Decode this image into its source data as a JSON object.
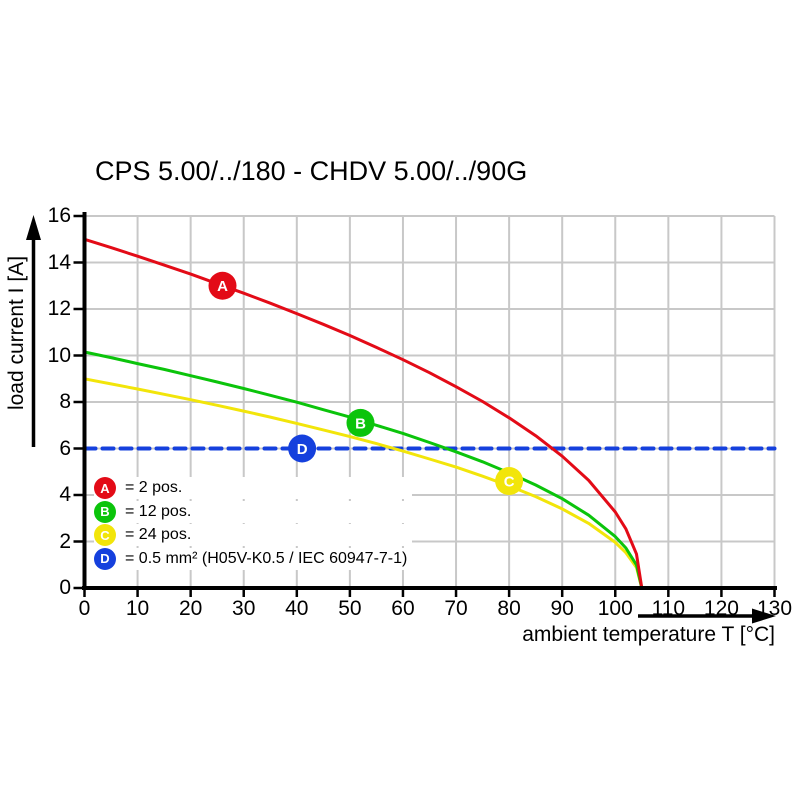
{
  "chart_data": {
    "type": "line",
    "title": "CPS 5.00/../180 - CHDV 5.00/../90G",
    "xlabel": "ambient temperature T [°C]",
    "ylabel": "load current I [A]",
    "xlim": [
      0,
      130
    ],
    "ylim": [
      0,
      16
    ],
    "x_ticks": [
      0,
      10,
      20,
      30,
      40,
      50,
      60,
      70,
      80,
      90,
      100,
      110,
      120,
      130
    ],
    "y_ticks": [
      0,
      2,
      4,
      6,
      8,
      10,
      12,
      14,
      16
    ],
    "grid": true,
    "grid_color": "#c8c8c8",
    "legend_position": "lower-left",
    "series": [
      {
        "key": "A",
        "name": "2 pos.",
        "color": "#e30b17",
        "line_style": "solid",
        "marker": {
          "label": "A",
          "x": 26,
          "y": 13
        },
        "points": [
          [
            0,
            15.0
          ],
          [
            5,
            14.64
          ],
          [
            10,
            14.27
          ],
          [
            15,
            13.89
          ],
          [
            20,
            13.5
          ],
          [
            25,
            13.09
          ],
          [
            30,
            12.68
          ],
          [
            35,
            12.25
          ],
          [
            40,
            11.8
          ],
          [
            45,
            11.34
          ],
          [
            50,
            10.86
          ],
          [
            55,
            10.35
          ],
          [
            60,
            9.82
          ],
          [
            65,
            9.26
          ],
          [
            70,
            8.66
          ],
          [
            75,
            8.02
          ],
          [
            80,
            7.32
          ],
          [
            85,
            6.55
          ],
          [
            90,
            5.67
          ],
          [
            95,
            4.63
          ],
          [
            100,
            3.27
          ],
          [
            102,
            2.54
          ],
          [
            104,
            1.46
          ],
          [
            105,
            0
          ]
        ]
      },
      {
        "key": "B",
        "name": "12 pos.",
        "color": "#0bc40b",
        "line_style": "solid",
        "marker": {
          "label": "B",
          "x": 52,
          "y": 7.1
        },
        "points": [
          [
            0,
            10.15
          ],
          [
            5,
            9.91
          ],
          [
            10,
            9.65
          ],
          [
            15,
            9.4
          ],
          [
            20,
            9.13
          ],
          [
            25,
            8.86
          ],
          [
            30,
            8.58
          ],
          [
            35,
            8.29
          ],
          [
            40,
            7.99
          ],
          [
            45,
            7.67
          ],
          [
            50,
            7.35
          ],
          [
            55,
            7.0
          ],
          [
            60,
            6.65
          ],
          [
            65,
            6.26
          ],
          [
            70,
            5.86
          ],
          [
            75,
            5.43
          ],
          [
            80,
            4.95
          ],
          [
            85,
            4.43
          ],
          [
            90,
            3.84
          ],
          [
            95,
            3.13
          ],
          [
            100,
            2.21
          ],
          [
            102,
            1.72
          ],
          [
            104,
            0.99
          ],
          [
            105,
            0
          ]
        ]
      },
      {
        "key": "C",
        "name": "24 pos.",
        "color": "#f2e50a",
        "line_style": "solid",
        "marker": {
          "label": "C",
          "x": 80,
          "y": 4.6
        },
        "points": [
          [
            0,
            9.0
          ],
          [
            5,
            8.78
          ],
          [
            10,
            8.56
          ],
          [
            15,
            8.33
          ],
          [
            20,
            8.1
          ],
          [
            25,
            7.86
          ],
          [
            30,
            7.61
          ],
          [
            35,
            7.35
          ],
          [
            40,
            7.08
          ],
          [
            45,
            6.8
          ],
          [
            50,
            6.51
          ],
          [
            55,
            6.21
          ],
          [
            60,
            5.89
          ],
          [
            65,
            5.55
          ],
          [
            70,
            5.2
          ],
          [
            75,
            4.81
          ],
          [
            80,
            4.39
          ],
          [
            85,
            3.93
          ],
          [
            90,
            3.4
          ],
          [
            95,
            2.78
          ],
          [
            100,
            1.96
          ],
          [
            102,
            1.52
          ],
          [
            104,
            0.88
          ],
          [
            105,
            0
          ]
        ]
      },
      {
        "key": "D",
        "name": "0.5 mm² (H05V-K0.5 / IEC 60947-7-1)",
        "color": "#1540dd",
        "line_style": "dashed",
        "marker": {
          "label": "D",
          "x": 41,
          "y": 6
        },
        "points": [
          [
            0,
            6
          ],
          [
            130,
            6
          ]
        ]
      }
    ],
    "legend": [
      {
        "label": "A",
        "color": "#e30b17",
        "text": "= 2 pos."
      },
      {
        "label": "B",
        "color": "#0bc40b",
        "text": "= 12 pos."
      },
      {
        "label": "C",
        "color": "#f2e50a",
        "text": "= 24 pos."
      },
      {
        "label": "D",
        "color": "#1540dd",
        "text": "= 0.5 mm² (H05V-K0.5 / IEC 60947-7-1)"
      }
    ]
  }
}
